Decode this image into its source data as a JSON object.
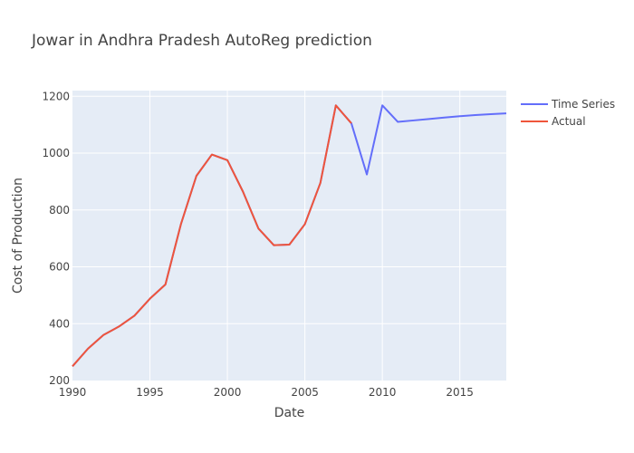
{
  "chart_data": {
    "type": "line",
    "title": "Jowar in Andhra Pradesh AutoReg prediction",
    "xlabel": "Date",
    "ylabel": "Cost of Production",
    "xlim": [
      1990,
      2018
    ],
    "ylim": [
      200,
      1220
    ],
    "x_ticks": [
      1990,
      1995,
      2000,
      2005,
      2010,
      2015
    ],
    "y_ticks": [
      200,
      400,
      600,
      800,
      1000,
      1200
    ],
    "grid": true,
    "legend_position": "top-right",
    "series": [
      {
        "name": "Time Series",
        "color": "#636efa",
        "x": [
          1990,
          1991,
          1992,
          1993,
          1994,
          1995,
          1996,
          1997,
          1998,
          1999,
          2000,
          2001,
          2002,
          2003,
          2004,
          2005,
          2006,
          2007,
          2008,
          2009,
          2010,
          2011,
          2012,
          2013,
          2014,
          2015,
          2016,
          2017,
          2018
        ],
        "y": [
          250,
          312,
          360,
          390,
          428,
          488,
          538,
          750,
          920,
          995,
          975,
          865,
          735,
          676,
          678,
          750,
          895,
          1168,
          1105,
          925,
          1168,
          1110,
          1115,
          1120,
          1125,
          1130,
          1134,
          1137,
          1140
        ]
      },
      {
        "name": "Actual",
        "color": "#ef553b",
        "x": [
          1990,
          1991,
          1992,
          1993,
          1994,
          1995,
          1996,
          1997,
          1998,
          1999,
          2000,
          2001,
          2002,
          2003,
          2004,
          2005,
          2006,
          2007,
          2008
        ],
        "y": [
          250,
          312,
          360,
          390,
          428,
          488,
          538,
          750,
          920,
          995,
          975,
          865,
          735,
          676,
          678,
          750,
          895,
          1168,
          1105
        ]
      }
    ]
  }
}
